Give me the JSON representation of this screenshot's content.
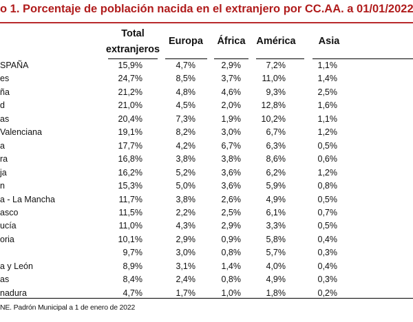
{
  "title": "o 1. Porcentaje de población nacida en el extranjero por CC.AA. a 01/01/2022",
  "title_color": "#b01c1c",
  "headers": {
    "total_line1": "Total",
    "total_line2": "extranjeros",
    "europa": "Europa",
    "africa": "África",
    "america": "América",
    "asia": "Asia"
  },
  "rows": [
    {
      "label": "SPAÑA",
      "total": "15,9%",
      "europa": "4,7%",
      "africa": "2,9%",
      "america": "7,2%",
      "asia": "1,1%"
    },
    {
      "label": "es",
      "total": "24,7%",
      "europa": "8,5%",
      "africa": "3,7%",
      "america": "11,0%",
      "asia": "1,4%"
    },
    {
      "label": "ña",
      "total": "21,2%",
      "europa": "4,8%",
      "africa": "4,6%",
      "america": "9,3%",
      "asia": "2,5%"
    },
    {
      "label": "d",
      "total": "21,0%",
      "europa": "4,5%",
      "africa": "2,0%",
      "america": "12,8%",
      "asia": "1,6%"
    },
    {
      "label": "as",
      "total": "20,4%",
      "europa": "7,3%",
      "africa": "1,9%",
      "america": "10,2%",
      "asia": "1,1%"
    },
    {
      "label": "Valenciana",
      "total": "19,1%",
      "europa": "8,2%",
      "africa": "3,0%",
      "america": "6,7%",
      "asia": "1,2%"
    },
    {
      "label": "a",
      "total": "17,7%",
      "europa": "4,2%",
      "africa": "6,7%",
      "america": "6,3%",
      "asia": "0,5%"
    },
    {
      "label": "ra",
      "total": "16,8%",
      "europa": "3,8%",
      "africa": "3,8%",
      "america": "8,6%",
      "asia": "0,6%"
    },
    {
      "label": "ja",
      "total": "16,2%",
      "europa": "5,2%",
      "africa": "3,6%",
      "america": "6,2%",
      "asia": "1,2%"
    },
    {
      "label": "n",
      "total": "15,3%",
      "europa": "5,0%",
      "africa": "3,6%",
      "america": "5,9%",
      "asia": "0,8%"
    },
    {
      "label": "a - La Mancha",
      "total": "11,7%",
      "europa": "3,8%",
      "africa": "2,6%",
      "america": "4,9%",
      "asia": "0,5%"
    },
    {
      "label": "asco",
      "total": "11,5%",
      "europa": "2,2%",
      "africa": "2,5%",
      "america": "6,1%",
      "asia": "0,7%"
    },
    {
      "label": "ucía",
      "total": "11,0%",
      "europa": "4,3%",
      "africa": "2,9%",
      "america": "3,3%",
      "asia": "0,5%"
    },
    {
      "label": "oria",
      "total": "10,1%",
      "europa": "2,9%",
      "africa": "0,9%",
      "america": "5,8%",
      "asia": "0,4%"
    },
    {
      "label": "",
      "total": "9,7%",
      "europa": "3,0%",
      "africa": "0,8%",
      "america": "5,7%",
      "asia": "0,3%"
    },
    {
      "label": "a y León",
      "total": "8,9%",
      "europa": "3,1%",
      "africa": "1,4%",
      "america": "4,0%",
      "asia": "0,4%"
    },
    {
      "label": "as",
      "total": "8,4%",
      "europa": "2,4%",
      "africa": "0,8%",
      "america": "4,9%",
      "asia": "0,3%"
    },
    {
      "label": "nadura",
      "total": "4,7%",
      "europa": "1,7%",
      "africa": "1,0%",
      "america": "1,8%",
      "asia": "0,2%"
    }
  ],
  "source": "NE. Padrón Municipal a 1 de enero de 2022"
}
